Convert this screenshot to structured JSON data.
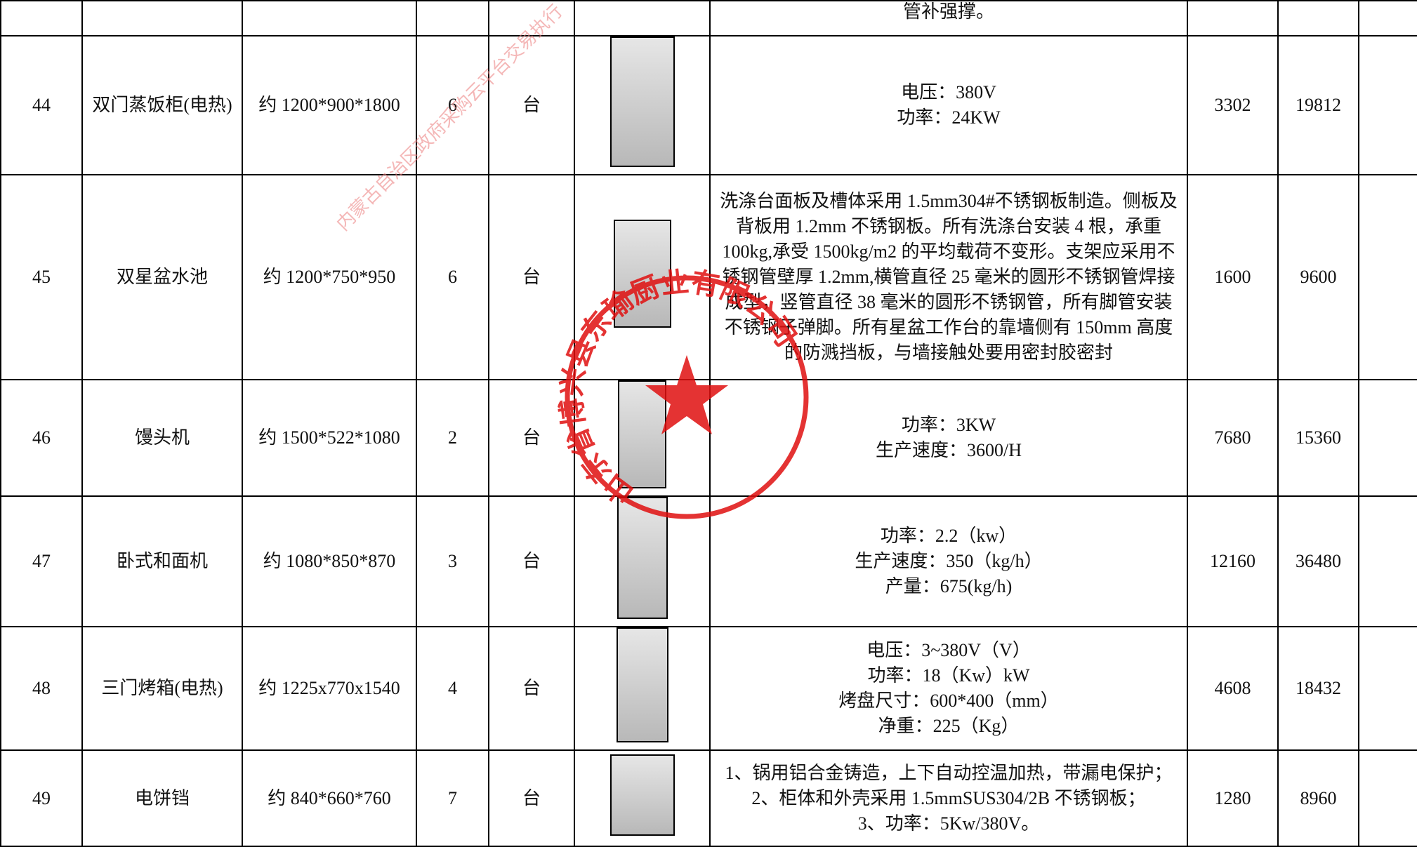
{
  "header_row": {
    "description": "管补强撑。"
  },
  "rows": [
    {
      "no": "44",
      "name": "双门蒸饭柜(电热)",
      "size": "约 1200*900*1800",
      "qty": "6",
      "unit": "台",
      "description": [
        "电压：380V",
        "功率：24KW"
      ],
      "price": "3302",
      "total": "19812"
    },
    {
      "no": "45",
      "name": "双星盆水池",
      "size": "约 1200*750*950",
      "qty": "6",
      "unit": "台",
      "description": [
        "洗涤台面板及槽体采用 1.5mm304#不锈钢板制造。侧板及背板用 1.2mm 不锈钢板。所有洗涤台安装 4 根，承重 100kg,承受 1500kg/m2 的平均载荷不变形。支架应采用不锈钢管壁厚 1.2mm,横管直径 25 毫米的圆形不锈钢管焊接成型，竖管直径 38 毫米的圆形不锈钢管，所有脚管安装不锈钢子弹脚。所有星盆工作台的靠墙侧有 150mm 高度的防溅挡板，与墙接触处要用密封胶密封"
      ],
      "price": "1600",
      "total": "9600"
    },
    {
      "no": "46",
      "name": "馒头机",
      "size": "约 1500*522*1080",
      "qty": "2",
      "unit": "台",
      "description": [
        "功率：3KW",
        "生产速度：3600/H"
      ],
      "price": "7680",
      "total": "15360"
    },
    {
      "no": "47",
      "name": "卧式和面机",
      "size": "约 1080*850*870",
      "qty": "3",
      "unit": "台",
      "description": [
        "功率：2.2（kw）",
        "生产速度：350（kg/h）",
        "产量：675(kg/h)"
      ],
      "price": "12160",
      "total": "36480"
    },
    {
      "no": "48",
      "name": "三门烤箱(电热)",
      "size": "约 1225x770x1540",
      "qty": "4",
      "unit": "台",
      "description": [
        "电压：3~380V（V）",
        "功率：18（Kw）kW",
        "烤盘尺寸：600*400（mm）",
        "净重：225（Kg）"
      ],
      "price": "4608",
      "total": "18432"
    },
    {
      "no": "49",
      "name": "电饼铛",
      "size": "约 840*660*760",
      "qty": "7",
      "unit": "台",
      "description": [
        "1、锅用铝合金铸造，上下自动控温加热，带漏电保护；",
        "2、柜体和外壳采用 1.5mmSUS304/2B 不锈钢板；",
        "3、功率：5Kw/380V。"
      ],
      "price": "1280",
      "total": "8960"
    }
  ],
  "stamp": {
    "company": "山东省博兴县东瑜厨业有限公司"
  },
  "watermark": {
    "text": "内蒙古自治区政府采购云平台交易执行"
  }
}
